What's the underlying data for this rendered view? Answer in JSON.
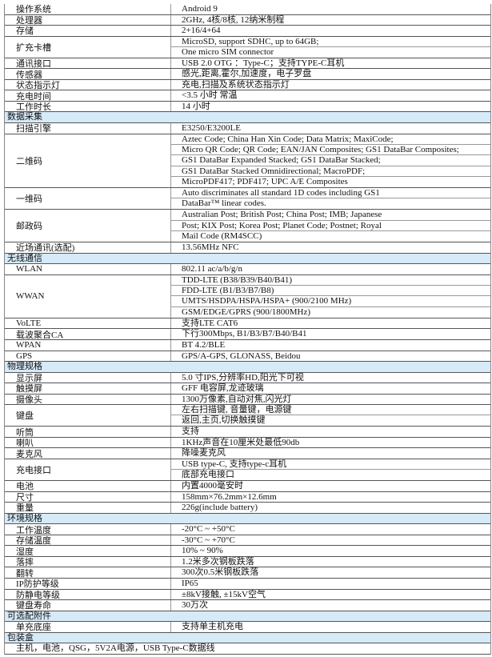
{
  "sections": [
    {
      "title": "",
      "rows": [
        {
          "label": "操作系统",
          "values": [
            "Android 9"
          ]
        },
        {
          "label": "处理器",
          "values": [
            "2GHz, 4核/8核, 12纳米制程"
          ]
        },
        {
          "label": "存储",
          "values": [
            "2+16/4+64"
          ]
        },
        {
          "label": "扩充卡槽",
          "values": [
            "MicroSD, support SDHC, up to 64GB;",
            "One micro SIM  connector"
          ]
        },
        {
          "label": "通讯接口",
          "values": [
            "USB 2.0 OTG ：Type-C；支持TYPE-C耳机"
          ]
        },
        {
          "label": "传感器",
          "values": [
            "感光,距离,霍尔,加速度，电子罗盘"
          ]
        },
        {
          "label": "状态指示灯",
          "values": [
            "充电,扫描及系统状态指示灯"
          ]
        },
        {
          "label": "充电时间",
          "values": [
            "<3.5 小时 常温"
          ]
        },
        {
          "label": "工作时长",
          "values": [
            "14 小时"
          ]
        }
      ]
    },
    {
      "title": "数据采集",
      "rows": [
        {
          "label": "扫描引擎",
          "values": [
            "E3250/E3200LE"
          ]
        },
        {
          "label": "二维码",
          "values": [
            "Aztec Code; China Han Xin Code; Data Matrix; MaxiCode;",
            "Micro QR Code; QR Code; EAN/JAN Composites; GS1 DataBar Composites;",
            "GS1 DataBar Expanded Stacked; GS1 DataBar Stacked;",
            "GS1 DataBar Stacked Omnidirectional; MacroPDF;",
            "MicroPDF417; PDF417; UPC A/E Composites"
          ]
        },
        {
          "label": "一维码",
          "values": [
            "Auto discriminates all standard 1D codes including GS1",
            "DataBar™ linear codes."
          ]
        },
        {
          "label": "邮政码",
          "values": [
            "Australian Post; British Post; China Post; IMB; Japanese",
            "Post; KIX Post; Korea Post; Planet Code; Postnet; Royal",
            "Mail Code (RM4SCC)"
          ]
        },
        {
          "label": "近场通讯(选配)",
          "values": [
            "13.56MHz NFC"
          ]
        }
      ]
    },
    {
      "title": "无线通信",
      "rows": [
        {
          "label": "WLAN",
          "values": [
            "802.11 ac/a/b/g/n"
          ]
        },
        {
          "label": "WWAN",
          "values": [
            "TDD-LTE (B38/B39/B40/B41)",
            "FDD-LTE (B1/B3/B7/B8)",
            "UMTS/HSDPA/HSPA/HSPA+ (900/2100 MHz)",
            "GSM/EDGE/GPRS (900/1800MHz)"
          ]
        },
        {
          "label": "VoLTE",
          "values": [
            "支持LTE CAT6"
          ]
        },
        {
          "label": "载波聚合CA",
          "values": [
            "下行300Mbps, B1/B3/B7/B40/B41"
          ]
        },
        {
          "label": "WPAN",
          "values": [
            "BT 4.2/BLE"
          ]
        },
        {
          "label": "GPS",
          "values": [
            "GPS/A-GPS, GLONASS, Beidou"
          ]
        }
      ]
    },
    {
      "title": "物理规格",
      "rows": [
        {
          "label": "显示屏",
          "values": [
            "5.0 寸IPS,分辨率HD,阳光下可视"
          ]
        },
        {
          "label": "触摸屏",
          "values": [
            "GFF 电容屏,龙迹玻璃"
          ]
        },
        {
          "label": "摄像头",
          "values": [
            "1300万像素,自动对焦,闪光灯"
          ]
        },
        {
          "label": "键盘",
          "values": [
            "左右扫描键, 音量键，电源键",
            "返回,主页,切换触摸键"
          ]
        },
        {
          "label": "听筒",
          "values": [
            "支持"
          ]
        },
        {
          "label": "喇叭",
          "values": [
            "1KHz声音在10厘米处最低90db"
          ]
        },
        {
          "label": "麦克风",
          "values": [
            "降噪麦克风"
          ]
        },
        {
          "label": "充电接口",
          "values": [
            "USB type-C, 支持type-c耳机",
            "底部充电接口"
          ]
        },
        {
          "label": "电池",
          "values": [
            "内置4000毫安时"
          ]
        },
        {
          "label": "尺寸",
          "values": [
            "158mm×76.2mm×12.6mm"
          ]
        },
        {
          "label": "重量",
          "values": [
            "226g(include battery)"
          ]
        }
      ]
    },
    {
      "title": "环境规格",
      "rows": [
        {
          "label": "工作温度",
          "values": [
            "-20°C ~ +50°C"
          ]
        },
        {
          "label": "存储温度",
          "values": [
            "-30°C ~ +70°C"
          ]
        },
        {
          "label": "湿度",
          "values": [
            "10% ~ 90%"
          ]
        },
        {
          "label": "落摔",
          "values": [
            "1.2米多次钢板跌落"
          ]
        },
        {
          "label": "翻转",
          "values": [
            "300次0.5米钢板跌落"
          ]
        },
        {
          "label": "IP防护等级",
          "values": [
            "IP65"
          ]
        },
        {
          "label": "防静电等级",
          "values": [
            "±8kV接触, ±15kV空气"
          ]
        },
        {
          "label": "键盘寿命",
          "values": [
            "30万次"
          ]
        }
      ]
    },
    {
      "title": "可选配附件",
      "rows": [
        {
          "label": "单充底座",
          "values": [
            "支持单主机充电"
          ]
        }
      ]
    },
    {
      "title": "包装盒",
      "full": "主机，电池，QSG，5V2A电源，USB Type-C数据线"
    }
  ],
  "colors": {
    "section_header_bg": "#d6eaf8",
    "border": "#555555"
  }
}
